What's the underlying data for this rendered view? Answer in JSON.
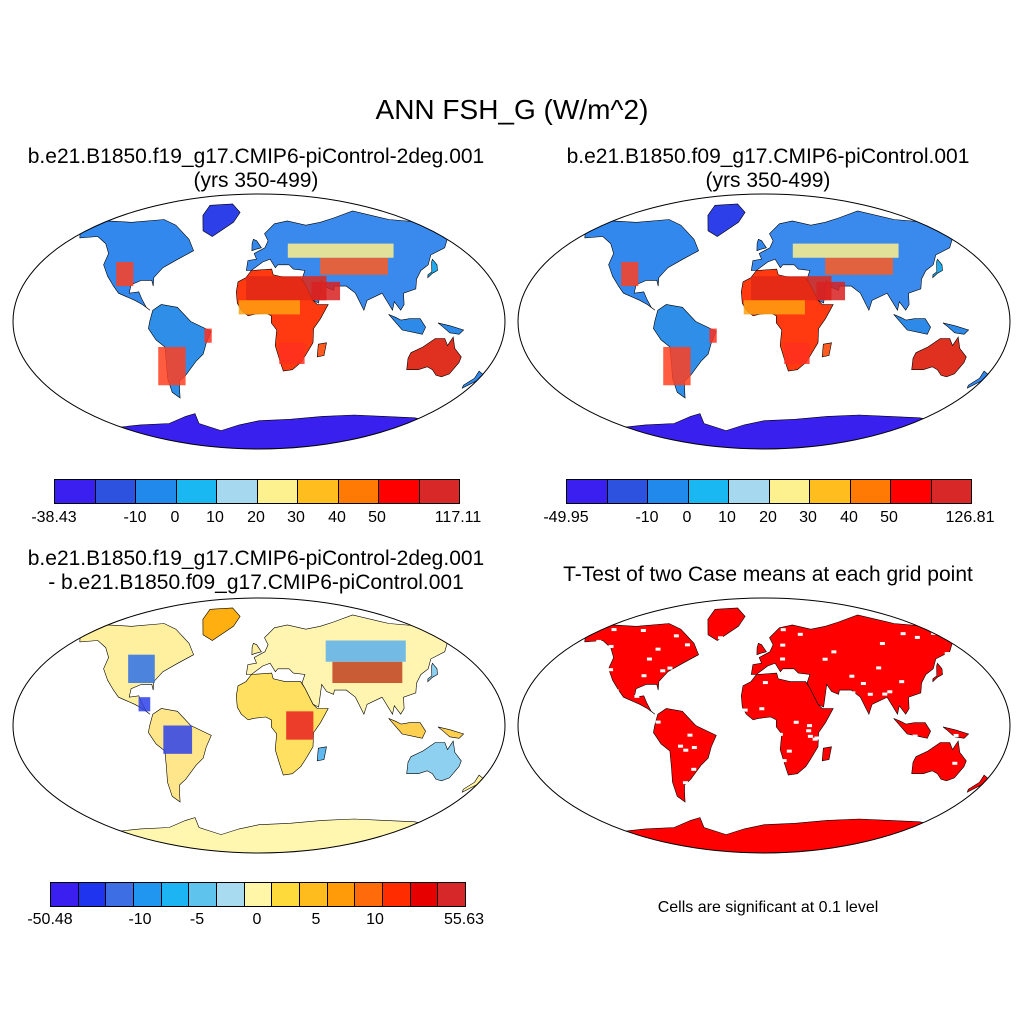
{
  "title": "ANN FSH_G (W/m^2)",
  "panels": [
    {
      "title_line1": "b.e21.B1850.f19_g17.CMIP6-piControl-2deg.001",
      "title_line2": "(yrs 350-499)",
      "colorbar": {
        "min_label": "-38.43",
        "max_label": "117.11",
        "tick_labels": [
          "-10",
          "0",
          "10",
          "20",
          "30",
          "40",
          "50"
        ],
        "colors": [
          "#3b1ff0",
          "#2d52e0",
          "#2188ec",
          "#19b8f2",
          "#a6d8f0",
          "#fdf08e",
          "#ffbe1e",
          "#ff7a05",
          "#ff0000",
          "#d92828"
        ]
      }
    },
    {
      "title_line1": "b.e21.B1850.f09_g17.CMIP6-piControl.001",
      "title_line2": "(yrs 350-499)",
      "colorbar": {
        "min_label": "-49.95",
        "max_label": "126.81",
        "tick_labels": [
          "-10",
          "0",
          "10",
          "20",
          "30",
          "40",
          "50"
        ],
        "colors": [
          "#3b1ff0",
          "#2d52e0",
          "#2188ec",
          "#19b8f2",
          "#a6d8f0",
          "#fdf08e",
          "#ffbe1e",
          "#ff7a05",
          "#ff0000",
          "#d92828"
        ]
      }
    },
    {
      "title_line1": "b.e21.B1850.f19_g17.CMIP6-piControl-2deg.001",
      "title_line2": "- b.e21.B1850.f09_g17.CMIP6-piControl.001",
      "colorbar": {
        "min_label": "-50.48",
        "max_label": "55.63",
        "tick_labels": [
          "-10",
          "-5",
          "0",
          "5",
          "10"
        ],
        "colors": [
          "#3b1ff0",
          "#1f34ee",
          "#3d6ee3",
          "#2196f0",
          "#1cb4f2",
          "#5ec4ee",
          "#a8daf0",
          "#fff6a8",
          "#ffda3a",
          "#ffbc1c",
          "#ff9a08",
          "#ff6a0a",
          "#ff2c00",
          "#e60000",
          "#d62828"
        ]
      }
    },
    {
      "title": "T-Test of two Case means at each grid point",
      "note": "Cells are significant at 0.1 level",
      "fill_color": "#ff0000"
    }
  ]
}
